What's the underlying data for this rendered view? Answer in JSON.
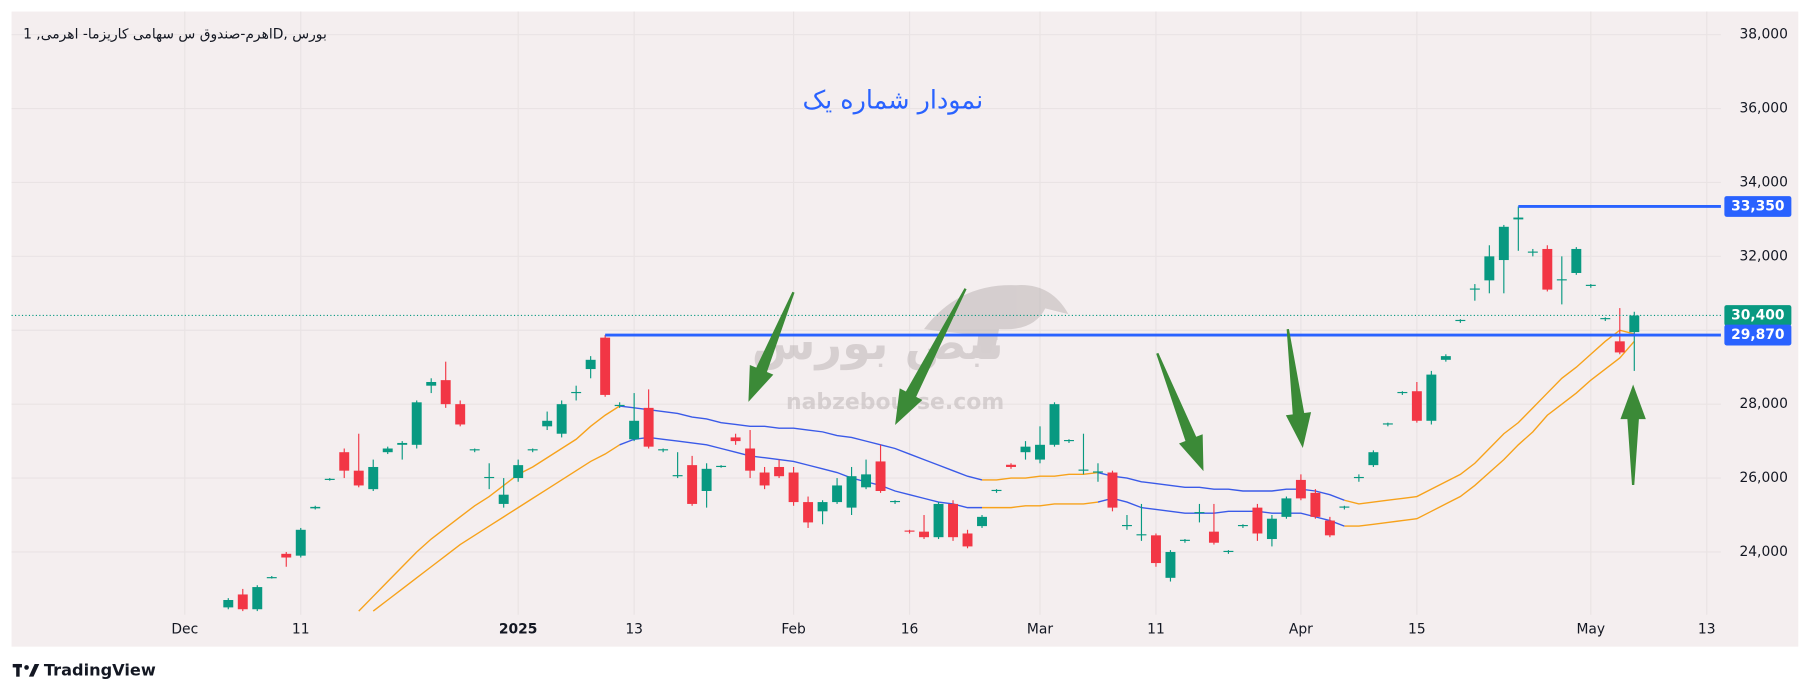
{
  "chart_data": {
    "type": "candlestick",
    "title": "اهرم-صندوق س سهامی کاریزما- اهرمی, 1D, بورس",
    "annotation": "نمودار شماره یک",
    "watermark": "nabzebourse.com",
    "watermark_logo_text": "نبض بورس",
    "footer": "TradingView",
    "categories": [
      "Dec",
      null,
      null,
      null,
      null,
      null,
      null,
      null,
      "11",
      null,
      null,
      null,
      null,
      null,
      null,
      null,
      null,
      null,
      null,
      null,
      null,
      null,
      null,
      "2025",
      null,
      null,
      null,
      null,
      null,
      null,
      null,
      "13",
      null,
      null,
      null,
      null,
      null,
      null,
      null,
      null,
      null,
      null,
      "Feb",
      null,
      null,
      null,
      null,
      null,
      null,
      null,
      "16",
      null,
      null,
      null,
      null,
      null,
      null,
      null,
      null,
      "Mar",
      null,
      null,
      null,
      null,
      null,
      null,
      null,
      "11",
      null,
      null,
      null,
      null,
      null,
      null,
      null,
      null,
      null,
      "Apr",
      null,
      null,
      null,
      null,
      null,
      null,
      null,
      "15",
      null,
      null,
      null,
      null,
      null,
      null,
      null,
      null,
      null,
      null,
      null,
      "May",
      null,
      null,
      null,
      null,
      null,
      null,
      null,
      "13"
    ],
    "open": [
      null,
      null,
      null,
      22500,
      22850,
      22450,
      23300,
      23950,
      23900,
      25180,
      25950,
      26700,
      26200,
      25700,
      26700,
      26900,
      26900,
      28500,
      28650,
      28000,
      26750,
      26000,
      25300,
      26000,
      26750,
      27400,
      27200,
      28300,
      28950,
      29800,
      27950,
      27050,
      27900,
      26750,
      26050,
      26350,
      25650,
      26300,
      27100,
      26800,
      26150,
      26300,
      26150,
      25350,
      25100,
      25350,
      25200,
      25750,
      26450,
      25350,
      24580,
      24550,
      24400,
      25300,
      24500,
      24700,
      25650,
      26360,
      26700,
      26500,
      26900,
      27000,
      26200,
      26150,
      26150,
      24700,
      24450,
      24450,
      23300,
      24300,
      25050,
      24550,
      24000,
      24700,
      25200,
      24350,
      24950,
      25950,
      25600,
      24850,
      25200,
      26000,
      26350,
      27450,
      28300,
      28350,
      27550,
      29200,
      30250,
      31100,
      31350,
      31900,
      33000,
      32100,
      32200,
      31350,
      31550,
      31200,
      30300,
      29700,
      29950,
      null,
      null,
      null,
      null,
      null
    ],
    "high": [
      null,
      null,
      null,
      22750,
      23000,
      23100,
      23350,
      24000,
      24650,
      25250,
      26000,
      26800,
      27200,
      26500,
      26850,
      27000,
      28100,
      28700,
      29150,
      28100,
      26800,
      26400,
      26000,
      26500,
      26800,
      27800,
      28100,
      28500,
      29300,
      29870,
      28050,
      28300,
      28400,
      26800,
      26700,
      26600,
      26400,
      26350,
      27200,
      27300,
      26300,
      26500,
      26300,
      25500,
      25400,
      26000,
      26300,
      26500,
      26900,
      25400,
      24600,
      25000,
      25350,
      25400,
      24600,
      25000,
      25700,
      26400,
      27000,
      27400,
      28050,
      27050,
      27200,
      26400,
      26200,
      25000,
      25300,
      24500,
      24050,
      24350,
      25300,
      25300,
      24050,
      24750,
      25300,
      25000,
      25500,
      26100,
      25700,
      24950,
      25250,
      26100,
      26750,
      27500,
      28350,
      28600,
      28900,
      29350,
      30300,
      31250,
      32300,
      32850,
      33350,
      32200,
      32300,
      32000,
      32250,
      31250,
      30350,
      30600,
      30500,
      null,
      null,
      null,
      null,
      null
    ],
    "low": [
      null,
      null,
      null,
      22450,
      22400,
      22400,
      23280,
      23600,
      23850,
      25150,
      25930,
      26000,
      25750,
      25650,
      26650,
      26500,
      26800,
      28300,
      27900,
      27400,
      26700,
      25700,
      25200,
      25900,
      26700,
      27300,
      27100,
      28100,
      28700,
      28200,
      27900,
      27000,
      26800,
      26700,
      26000,
      25250,
      25200,
      26280,
      26900,
      26000,
      25700,
      26000,
      25250,
      24650,
      24750,
      25300,
      25000,
      25700,
      25600,
      25300,
      24500,
      24350,
      24350,
      24300,
      24100,
      24650,
      25600,
      26250,
      26500,
      26400,
      26850,
      26950,
      26100,
      25900,
      25100,
      24600,
      24300,
      23600,
      23200,
      24250,
      24800,
      24200,
      23950,
      24650,
      24300,
      24150,
      24900,
      25400,
      24900,
      24400,
      25150,
      25900,
      26300,
      27400,
      28250,
      27500,
      27450,
      29150,
      30200,
      30800,
      31000,
      31000,
      32150,
      32000,
      31050,
      30700,
      31500,
      31150,
      30250,
      29350,
      28900,
      null,
      null,
      null,
      null,
      null
    ],
    "close": [
      null,
      null,
      null,
      22700,
      22450,
      23050,
      23320,
      23850,
      24600,
      25220,
      25980,
      26200,
      25800,
      26300,
      26800,
      26950,
      28050,
      28600,
      28000,
      27450,
      26780,
      26030,
      25550,
      26350,
      26780,
      27550,
      28000,
      28330,
      29200,
      28250,
      27980,
      27550,
      26850,
      26780,
      26080,
      25300,
      26250,
      26330,
      27000,
      26200,
      25800,
      26050,
      25350,
      24800,
      25350,
      25800,
      26050,
      26100,
      25650,
      25380,
      24550,
      24400,
      25300,
      24400,
      24150,
      24950,
      25680,
      26300,
      26850,
      26900,
      28000,
      27030,
      26230,
      26180,
      25200,
      24730,
      24480,
      23700,
      24000,
      24330,
      25080,
      24250,
      24030,
      24730,
      24500,
      24900,
      25450,
      25450,
      24950,
      24450,
      25230,
      26030,
      26700,
      27480,
      28330,
      27550,
      28800,
      29300,
      30280,
      31130,
      32000,
      32800,
      33050,
      32130,
      31100,
      31380,
      32200,
      31230,
      30330,
      29400,
      30400,
      null,
      null,
      null,
      null,
      null
    ],
    "up_color": "#089981",
    "down_color": "#f23645",
    "series": [
      {
        "values": [
          null,
          null,
          null,
          null,
          null,
          null,
          null,
          null,
          null,
          null,
          null,
          null,
          22400,
          22800,
          23200,
          23600,
          24000,
          24350,
          24650,
          24950,
          25250,
          25500,
          25800,
          26100,
          26300,
          26550,
          26800,
          27050,
          27400,
          27700,
          27950,
          27900,
          27850,
          27800,
          27750,
          27650,
          27600,
          27500,
          27450,
          27400,
          27400,
          27350,
          27350,
          27300,
          27250,
          27150,
          27100,
          27000,
          26900,
          26800,
          26650,
          26500,
          26350,
          26200,
          26050,
          25950,
          25950,
          26000,
          26000,
          26050,
          26050,
          26100,
          26100,
          26150,
          26050,
          26000,
          25900,
          25850,
          25800,
          25750,
          25750,
          25700,
          25700,
          25650,
          25650,
          25650,
          25700,
          25700,
          25650,
          25550,
          25400,
          25300,
          25350,
          25400,
          25450,
          25500,
          25700,
          25900,
          26100,
          26400,
          26800,
          27200,
          27500,
          27900,
          28300,
          28700,
          29000,
          29350,
          29700,
          30000,
          29900,
          null,
          null,
          null,
          null,
          null
        ]
      },
      {
        "values": [
          null,
          null,
          null,
          null,
          null,
          null,
          null,
          null,
          null,
          null,
          null,
          null,
          null,
          22400,
          22700,
          23000,
          23300,
          23600,
          23900,
          24200,
          24450,
          24700,
          24950,
          25200,
          25450,
          25700,
          25950,
          26200,
          26450,
          26650,
          26900,
          27050,
          27100,
          27050,
          27000,
          26950,
          26900,
          26800,
          26700,
          26600,
          26550,
          26500,
          26450,
          26350,
          26250,
          26150,
          26000,
          25900,
          25800,
          25650,
          25550,
          25450,
          25350,
          25300,
          25200,
          25200,
          25200,
          25200,
          25250,
          25250,
          25300,
          25300,
          25300,
          25350,
          25450,
          25350,
          25200,
          25150,
          25100,
          25050,
          25050,
          25050,
          25100,
          25100,
          25100,
          25050,
          25050,
          25050,
          24950,
          24850,
          24700,
          24700,
          24750,
          24800,
          24850,
          24900,
          25100,
          25300,
          25500,
          25800,
          26150,
          26500,
          26900,
          27250,
          27700,
          28000,
          28300,
          28650,
          28950,
          29250,
          29700,
          null,
          null,
          null,
          null,
          null
        ]
      }
    ],
    "line_colors": [
      "#f7a21b",
      "#f7a21b",
      "#f7a21b",
      "#f7a21b",
      "#f7a21b",
      "#f7a21b",
      "#f7a21b",
      "#f7a21b",
      "#f7a21b",
      "#f7a21b",
      "#f7a21b",
      "#f7a21b",
      "#f7a21b",
      "#f7a21b",
      "#f7a21b",
      "#f7a21b",
      "#f7a21b",
      "#f7a21b",
      "#f7a21b",
      "#f7a21b",
      "#f7a21b",
      "#f7a21b",
      "#f7a21b",
      "#f7a21b",
      "#f7a21b",
      "#f7a21b",
      "#f7a21b",
      "#f7a21b",
      "#f7a21b",
      "#f7a21b",
      "#f7a21b",
      "#3a5ae8",
      "#3a5ae8",
      "#3a5ae8",
      "#3a5ae8",
      "#3a5ae8",
      "#3a5ae8",
      "#3a5ae8",
      "#3a5ae8",
      "#3a5ae8",
      "#3a5ae8",
      "#3a5ae8",
      "#3a5ae8",
      "#3a5ae8",
      "#3a5ae8",
      "#3a5ae8",
      "#3a5ae8",
      "#3a5ae8",
      "#3a5ae8",
      "#3a5ae8",
      "#3a5ae8",
      "#3a5ae8",
      "#3a5ae8",
      "#3a5ae8",
      "#3a5ae8",
      "#3a5ae8",
      "#f7a21b",
      "#f7a21b",
      "#f7a21b",
      "#f7a21b",
      "#f7a21b",
      "#f7a21b",
      "#f7a21b",
      "#f7a21b",
      "#3a5ae8",
      "#3a5ae8",
      "#3a5ae8",
      "#3a5ae8",
      "#3a5ae8",
      "#3a5ae8",
      "#3a5ae8",
      "#3a5ae8",
      "#3a5ae8",
      "#3a5ae8",
      "#3a5ae8",
      "#3a5ae8",
      "#3a5ae8",
      "#3a5ae8",
      "#3a5ae8",
      "#3a5ae8",
      "#3a5ae8",
      "#f7a21b",
      "#f7a21b",
      "#f7a21b",
      "#f7a21b",
      "#f7a21b",
      "#f7a21b",
      "#f7a21b",
      "#f7a21b",
      "#f7a21b",
      "#f7a21b",
      "#f7a21b",
      "#f7a21b",
      "#f7a21b",
      "#f7a21b",
      "#f7a21b",
      "#f7a21b",
      "#f7a21b",
      "#f7a21b",
      "#f7a21b",
      "#f7a21b",
      "#f7a21b",
      "#f7a21b",
      "#f7a21b",
      "#f7a21b",
      "#f7a21b"
    ],
    "levels": [
      {
        "value": 33350,
        "label": "33,350"
      },
      {
        "value": 29870,
        "label": "29,870"
      }
    ],
    "level_color": "#2962ff",
    "last_price": {
      "value": 30400,
      "label": "30,400"
    },
    "last_price_color": "#089981",
    "ylim": [
      22300,
      38625
    ],
    "yticks": [
      {
        "value": 24000,
        "label": "24,000"
      },
      {
        "value": 26000,
        "label": "26,000"
      },
      {
        "value": 28000,
        "label": "28,000"
      },
      {
        "value": 30000,
        "label": "30,000"
      },
      {
        "value": 32000,
        "label": "32,000"
      },
      {
        "value": 34000,
        "label": "34,000"
      },
      {
        "value": 36000,
        "label": "36,000"
      },
      {
        "value": 38000,
        "label": "38,000"
      }
    ],
    "grid": true
  }
}
